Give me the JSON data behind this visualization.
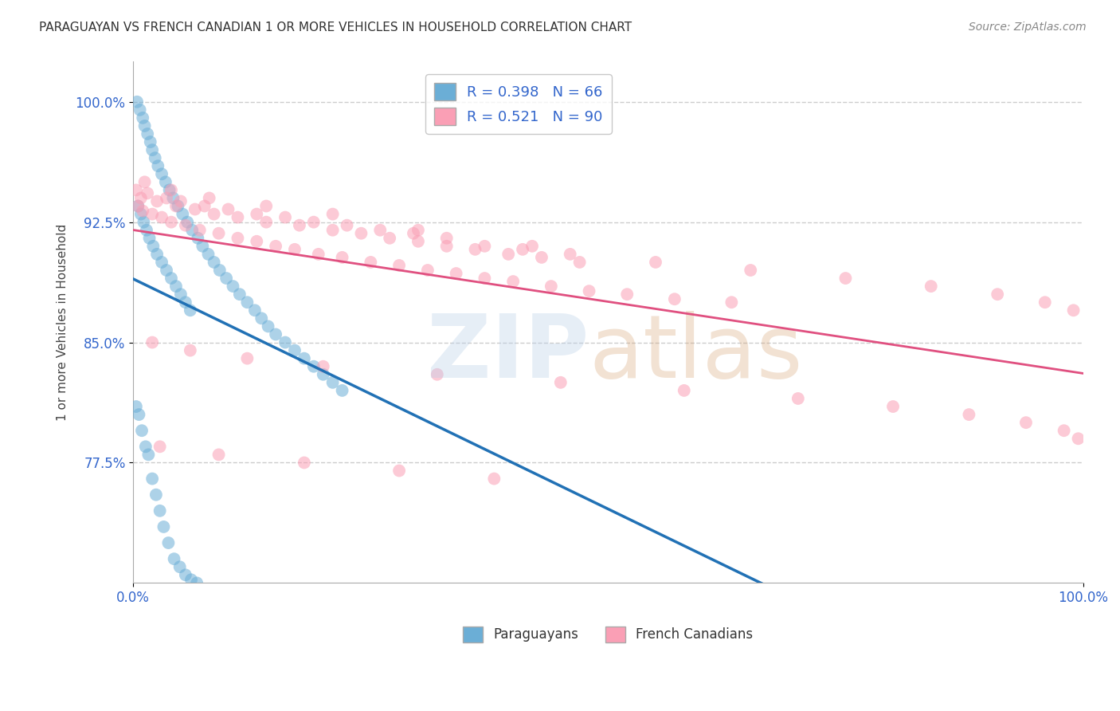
{
  "title": "PARAGUAYAN VS FRENCH CANADIAN 1 OR MORE VEHICLES IN HOUSEHOLD CORRELATION CHART",
  "source": "Source: ZipAtlas.com",
  "ylabel": "1 or more Vehicles in Household",
  "xlabel_legend_left": "Paraguayans",
  "xlabel_legend_right": "French Canadians",
  "xlim": [
    0.0,
    100.0
  ],
  "ylim": [
    70.0,
    102.5
  ],
  "yticks": [
    77.5,
    85.0,
    92.5,
    100.0
  ],
  "ytick_labels": [
    "77.5%",
    "85.0%",
    "92.5%",
    "100.0%"
  ],
  "blue_R": 0.398,
  "blue_N": 66,
  "pink_R": 0.521,
  "pink_N": 90,
  "blue_color": "#6baed6",
  "blue_line_color": "#2171b5",
  "pink_color": "#fa9fb5",
  "pink_line_color": "#e05080",
  "grid_color": "#cccccc",
  "blue_scatter_x": [
    0.4,
    0.7,
    1.0,
    1.2,
    1.5,
    1.8,
    2.0,
    2.3,
    2.6,
    3.0,
    3.4,
    3.8,
    4.2,
    4.7,
    5.2,
    5.7,
    6.2,
    6.8,
    7.3,
    7.9,
    8.5,
    9.1,
    9.8,
    10.5,
    11.2,
    12.0,
    12.8,
    13.5,
    14.2,
    15.0,
    16.0,
    17.0,
    18.0,
    19.0,
    20.0,
    21.0,
    22.0,
    0.5,
    0.8,
    1.1,
    1.4,
    1.7,
    2.1,
    2.5,
    3.0,
    3.5,
    4.0,
    4.5,
    5.0,
    5.5,
    6.0,
    0.3,
    0.6,
    0.9,
    1.3,
    1.6,
    2.0,
    2.4,
    2.8,
    3.2,
    3.7,
    4.3,
    4.9,
    5.5,
    6.1,
    6.7
  ],
  "blue_scatter_y": [
    100.0,
    99.5,
    99.0,
    98.5,
    98.0,
    97.5,
    97.0,
    96.5,
    96.0,
    95.5,
    95.0,
    94.5,
    94.0,
    93.5,
    93.0,
    92.5,
    92.0,
    91.5,
    91.0,
    90.5,
    90.0,
    89.5,
    89.0,
    88.5,
    88.0,
    87.5,
    87.0,
    86.5,
    86.0,
    85.5,
    85.0,
    84.5,
    84.0,
    83.5,
    83.0,
    82.5,
    82.0,
    93.5,
    93.0,
    92.5,
    92.0,
    91.5,
    91.0,
    90.5,
    90.0,
    89.5,
    89.0,
    88.5,
    88.0,
    87.5,
    87.0,
    81.0,
    80.5,
    79.5,
    78.5,
    78.0,
    76.5,
    75.5,
    74.5,
    73.5,
    72.5,
    71.5,
    71.0,
    70.5,
    70.2,
    70.0
  ],
  "pink_scatter_x": [
    0.5,
    1.0,
    2.0,
    3.0,
    4.0,
    5.5,
    7.0,
    9.0,
    11.0,
    13.0,
    15.0,
    17.0,
    19.5,
    22.0,
    25.0,
    28.0,
    31.0,
    34.0,
    37.0,
    40.0,
    44.0,
    48.0,
    52.0,
    57.0,
    63.0,
    0.8,
    2.5,
    4.5,
    6.5,
    8.5,
    11.0,
    14.0,
    17.5,
    21.0,
    24.0,
    27.0,
    30.0,
    33.0,
    36.0,
    39.5,
    43.0,
    47.0,
    0.3,
    1.5,
    3.5,
    5.0,
    7.5,
    10.0,
    13.0,
    16.0,
    19.0,
    22.5,
    26.0,
    29.5,
    33.0,
    37.0,
    41.0,
    46.0,
    1.2,
    4.0,
    8.0,
    14.0,
    21.0,
    30.0,
    42.0,
    55.0,
    65.0,
    75.0,
    84.0,
    91.0,
    96.0,
    99.0,
    2.0,
    6.0,
    12.0,
    20.0,
    32.0,
    45.0,
    58.0,
    70.0,
    80.0,
    88.0,
    94.0,
    98.0,
    99.5,
    2.8,
    9.0,
    18.0,
    28.0,
    38.0
  ],
  "pink_scatter_y": [
    93.5,
    93.2,
    93.0,
    92.8,
    92.5,
    92.3,
    92.0,
    91.8,
    91.5,
    91.3,
    91.0,
    90.8,
    90.5,
    90.3,
    90.0,
    89.8,
    89.5,
    89.3,
    89.0,
    88.8,
    88.5,
    88.2,
    88.0,
    87.7,
    87.5,
    94.0,
    93.8,
    93.5,
    93.3,
    93.0,
    92.8,
    92.5,
    92.3,
    92.0,
    91.8,
    91.5,
    91.3,
    91.0,
    90.8,
    90.5,
    90.3,
    90.0,
    94.5,
    94.3,
    94.0,
    93.8,
    93.5,
    93.3,
    93.0,
    92.8,
    92.5,
    92.3,
    92.0,
    91.8,
    91.5,
    91.0,
    90.8,
    90.5,
    95.0,
    94.5,
    94.0,
    93.5,
    93.0,
    92.0,
    91.0,
    90.0,
    89.5,
    89.0,
    88.5,
    88.0,
    87.5,
    87.0,
    85.0,
    84.5,
    84.0,
    83.5,
    83.0,
    82.5,
    82.0,
    81.5,
    81.0,
    80.5,
    80.0,
    79.5,
    79.0,
    78.5,
    78.0,
    77.5,
    77.0,
    76.5
  ]
}
